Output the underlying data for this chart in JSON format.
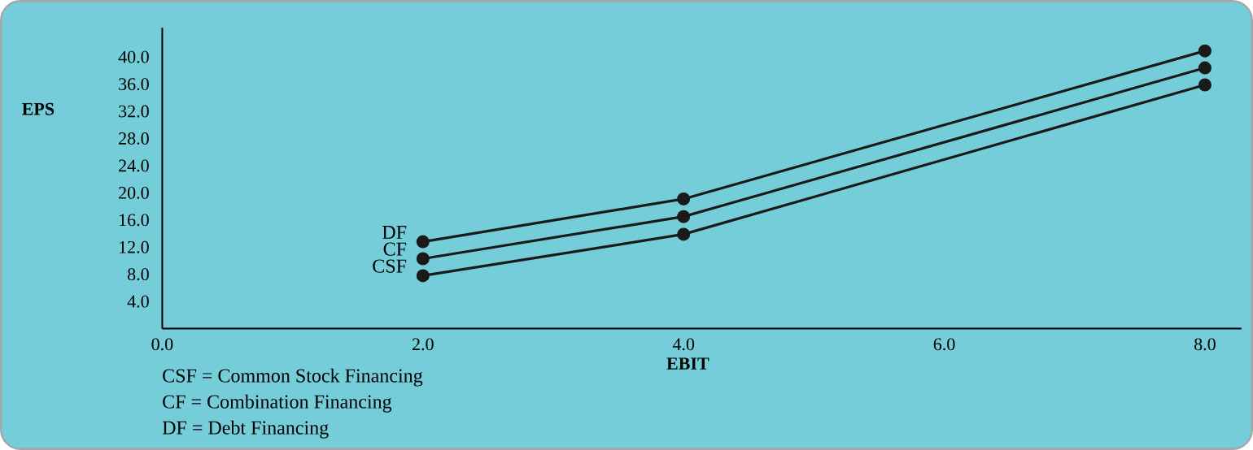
{
  "chart_data": {
    "type": "line",
    "xlabel": "EBIT",
    "ylabel": "EPS",
    "xlim": [
      0,
      8.28
    ],
    "ylim": [
      0,
      44.3
    ],
    "xticks": [
      {
        "value": 0,
        "label": "0.0"
      },
      {
        "value": 2,
        "label": "2.0"
      },
      {
        "value": 4,
        "label": "4.0"
      },
      {
        "value": 6,
        "label": "6.0"
      },
      {
        "value": 8,
        "label": "8.0"
      }
    ],
    "yticks": [
      {
        "value": 4,
        "label": "4.0"
      },
      {
        "value": 8,
        "label": "8.0"
      },
      {
        "value": 12,
        "label": "12.0"
      },
      {
        "value": 16,
        "label": "16.0"
      },
      {
        "value": 20,
        "label": "20.0"
      },
      {
        "value": 24,
        "label": "24.0"
      },
      {
        "value": 28,
        "label": "28.0"
      },
      {
        "value": 32,
        "label": "32.0"
      },
      {
        "value": 36,
        "label": "36.0"
      },
      {
        "value": 40,
        "label": "40.0"
      }
    ],
    "x": [
      2,
      4,
      8
    ],
    "series": [
      {
        "name": "DF",
        "color": "#1a1a1a",
        "values": [
          12.8,
          19.1,
          40.9
        ]
      },
      {
        "name": "CF",
        "color": "#1a1a1a",
        "values": [
          10.3,
          16.5,
          38.4
        ]
      },
      {
        "name": "CSF",
        "color": "#1a1a1a",
        "values": [
          7.8,
          13.9,
          35.9
        ]
      }
    ],
    "marker": "circle",
    "line_style": "solid",
    "grid": false,
    "legend": "left",
    "annotations": [
      "CSF = Common Stock Financing",
      "CF = Combination Financing",
      "DF = Debt Financing"
    ]
  }
}
